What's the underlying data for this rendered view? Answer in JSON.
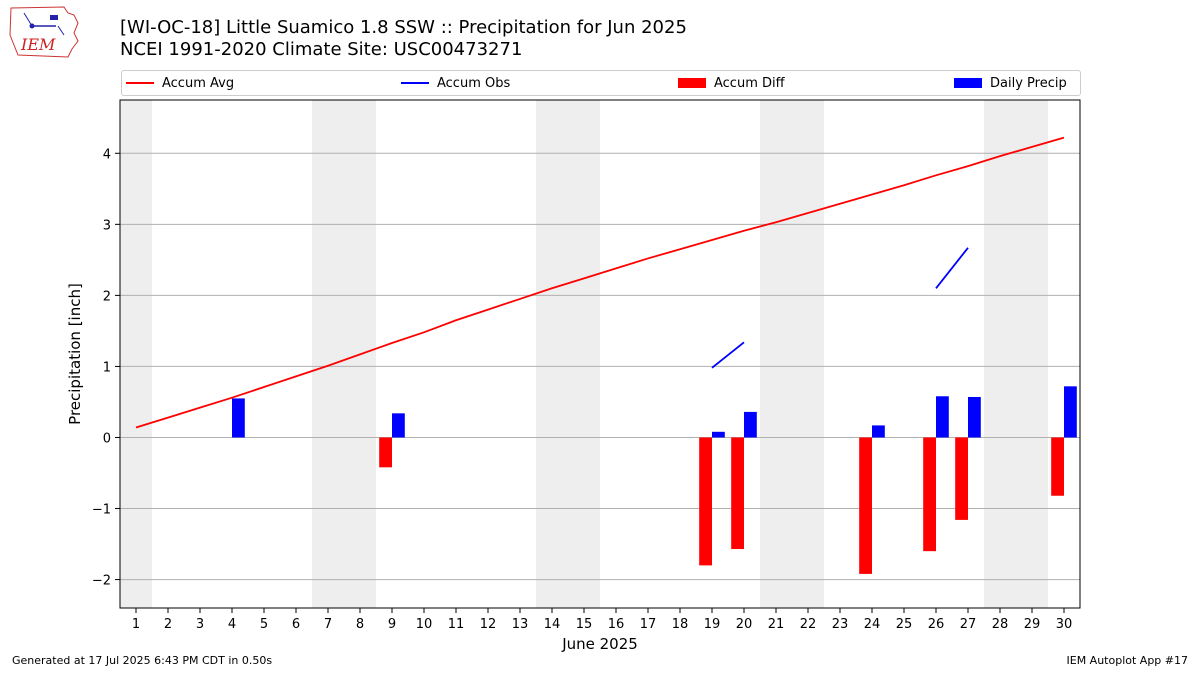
{
  "header": {
    "title_line1": "[WI-OC-18] Little Suamico 1.8 SSW :: Precipitation for Jun 2025",
    "title_line2": "NCEI 1991-2020 Climate Site: USC00473271",
    "logo_text": "IEM"
  },
  "footer": {
    "generated": "Generated at 17 Jul 2025 6:43 PM CDT in 0.50s",
    "app": "IEM Autoplot App #17"
  },
  "colors": {
    "accum_avg": "#ff0000",
    "accum_obs": "#0000ff",
    "accum_diff": "#ff0000",
    "daily_precip": "#0000ff",
    "weekend_band": "#eeeeee",
    "grid": "#b0b0b0"
  },
  "chart_data": {
    "type": "bar",
    "xlabel": "June 2025",
    "ylabel": "Precipitation [inch]",
    "xlim": [
      0.5,
      30.5
    ],
    "ylim": [
      -2.4,
      4.75
    ],
    "x_ticks": [
      1,
      2,
      3,
      4,
      5,
      6,
      7,
      8,
      9,
      10,
      11,
      12,
      13,
      14,
      15,
      16,
      17,
      18,
      19,
      20,
      21,
      22,
      23,
      24,
      25,
      26,
      27,
      28,
      29,
      30
    ],
    "y_ticks": [
      -2,
      -1,
      0,
      1,
      2,
      3,
      4
    ],
    "grid": "horizontal",
    "legend_position": "top",
    "legend": [
      "Accum Avg",
      "Accum Obs",
      "Accum Diff",
      "Daily Precip"
    ],
    "weekend_days": [
      1,
      7,
      8,
      14,
      15,
      21,
      22,
      28,
      29
    ],
    "days": [
      1,
      2,
      3,
      4,
      5,
      6,
      7,
      8,
      9,
      10,
      11,
      12,
      13,
      14,
      15,
      16,
      17,
      18,
      19,
      20,
      21,
      22,
      23,
      24,
      25,
      26,
      27,
      28,
      29,
      30
    ],
    "series": [
      {
        "name": "Accum Avg",
        "kind": "line",
        "values": [
          0.14,
          0.28,
          0.42,
          0.56,
          0.71,
          0.86,
          1.01,
          1.17,
          1.33,
          1.48,
          1.65,
          1.8,
          1.95,
          2.1,
          2.24,
          2.38,
          2.52,
          2.65,
          2.78,
          2.91,
          3.03,
          3.16,
          3.29,
          3.42,
          3.55,
          3.69,
          3.82,
          3.96,
          4.09,
          4.22
        ]
      },
      {
        "name": "Accum Obs",
        "kind": "segments",
        "segments": [
          {
            "x": [
              19,
              20
            ],
            "y": [
              0.98,
              1.34
            ]
          },
          {
            "x": [
              26,
              27
            ],
            "y": [
              2.1,
              2.67
            ]
          }
        ]
      },
      {
        "name": "Accum Diff",
        "kind": "bar",
        "points": [
          {
            "day": 9,
            "value": -0.42
          },
          {
            "day": 19,
            "value": -1.8
          },
          {
            "day": 20,
            "value": -1.57
          },
          {
            "day": 24,
            "value": -1.92
          },
          {
            "day": 26,
            "value": -1.6
          },
          {
            "day": 27,
            "value": -1.16
          },
          {
            "day": 30,
            "value": -0.82
          }
        ]
      },
      {
        "name": "Daily Precip",
        "kind": "bar",
        "points": [
          {
            "day": 4,
            "value": 0.55
          },
          {
            "day": 9,
            "value": 0.34
          },
          {
            "day": 19,
            "value": 0.08
          },
          {
            "day": 20,
            "value": 0.36
          },
          {
            "day": 24,
            "value": 0.17
          },
          {
            "day": 26,
            "value": 0.58
          },
          {
            "day": 27,
            "value": 0.57
          },
          {
            "day": 30,
            "value": 0.72
          }
        ]
      }
    ]
  }
}
